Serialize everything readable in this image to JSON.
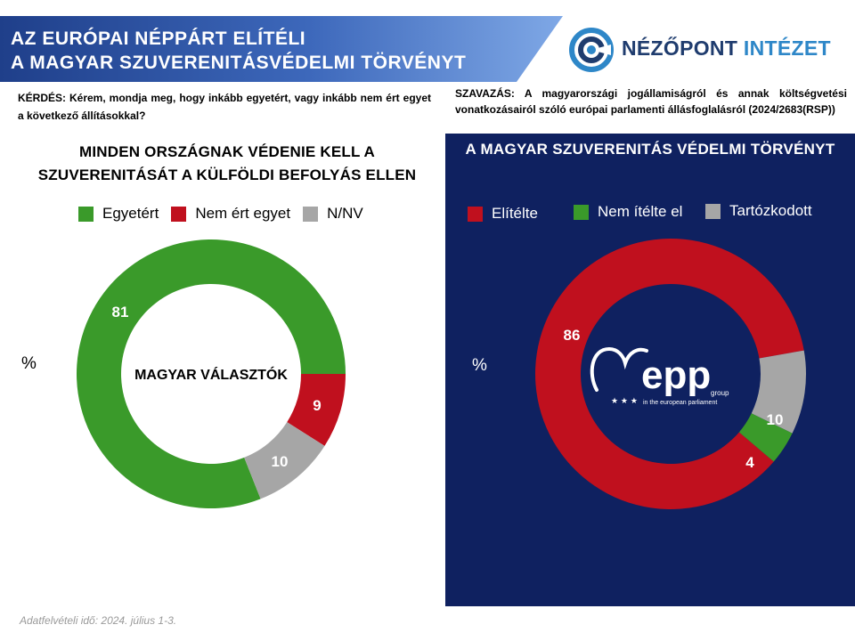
{
  "header": {
    "title_line1": "AZ EURÓPAI NÉPPÁRT ELÍTÉLI",
    "title_line2": "A MAGYAR SZUVERENITÁSVÉDELMI TÖRVÉNYT",
    "banner_color_start": "#1f3f8a",
    "banner_color_end": "#6a9be0"
  },
  "logo": {
    "icon": "nezopont-logo-icon",
    "word1": "NÉZŐPONT",
    "word2": "INTÉZET",
    "color_dark": "#1f3c6e",
    "color_light": "#2e87c8"
  },
  "question": "KÉRDÉS: Kérem, mondja meg, hogy inkább egyetért, vagy inkább nem ért egyet a következő állításokkal?",
  "vote": "SZAVAZÁS: A magyarországi jogállamiságról és annak költségvetési vonatkozásairól szóló európai parlamenti állásfoglalásról (2024/2683(RSP))",
  "left_chart_title_line1": "MINDEN ORSZÁGNAK VÉDENIE KELL A",
  "left_chart_title_line2": "SZUVERENITÁSÁT A KÜLFÖLDI BEFOLYÁS ELLEN",
  "right_chart_title": "A MAGYAR SZUVERENITÁS VÉDELMI TÖRVÉNYT",
  "left_unit": "%",
  "right_unit": "%",
  "footnote": "Adatfelvételi idő: 2024. július 1-3.",
  "epp_logo": {
    "text": "epp",
    "sub1": "group",
    "sub2": "in the european parliament",
    "icon": "epp-heart-logo-icon"
  },
  "chart_data": [
    {
      "type": "pie",
      "donut": true,
      "center_label": "MAGYAR VÁLASZTÓK",
      "unit": "%",
      "categories": [
        "Egyetért",
        "Nem ért egyet",
        "N/NV"
      ],
      "values": [
        81,
        9,
        10
      ],
      "colors": [
        "#3a9a2a",
        "#c0101e",
        "#a6a6a6"
      ],
      "legend_position": "top"
    },
    {
      "type": "pie",
      "donut": true,
      "center_label": "",
      "unit": "%",
      "categories": [
        "Elítélte",
        "Nem ítélte el",
        "Tartózkodott"
      ],
      "values": [
        86,
        4,
        10
      ],
      "colors": [
        "#c0101e",
        "#3a9a2a",
        "#a6a6a6"
      ],
      "legend_position": "top"
    }
  ]
}
